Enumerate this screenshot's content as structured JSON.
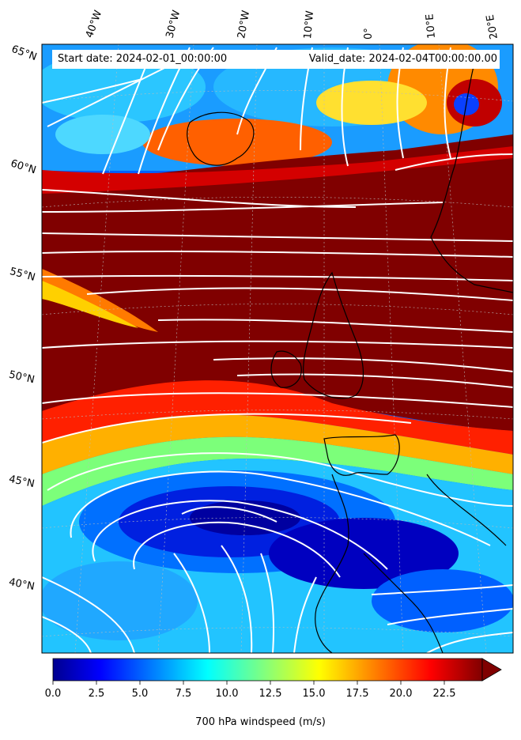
{
  "header": {
    "start_date": "Start date: 2024-02-01_00:00:00",
    "valid_date": "Valid_date: 2024-02-04T00:00:00.00"
  },
  "longitude_labels": [
    "40°W",
    "30°W",
    "20°W",
    "10°W",
    "0°",
    "10°E",
    "20°E"
  ],
  "latitude_labels": [
    "65°N",
    "60°N",
    "55°N",
    "50°N",
    "45°N",
    "40°N"
  ],
  "colorbar": {
    "title": "700 hPa windspeed (m/s)",
    "ticks": [
      "0.0",
      "2.5",
      "5.0",
      "7.5",
      "10.0",
      "12.5",
      "15.0",
      "17.5",
      "20.0",
      "22.5"
    ],
    "range": [
      0,
      25
    ],
    "colormap": "jet",
    "extend": "max"
  },
  "colors": {
    "high_wind": "#800000",
    "low_wind": "#0000c8",
    "streamlines": "#ffffff",
    "coastline": "#000000"
  }
}
